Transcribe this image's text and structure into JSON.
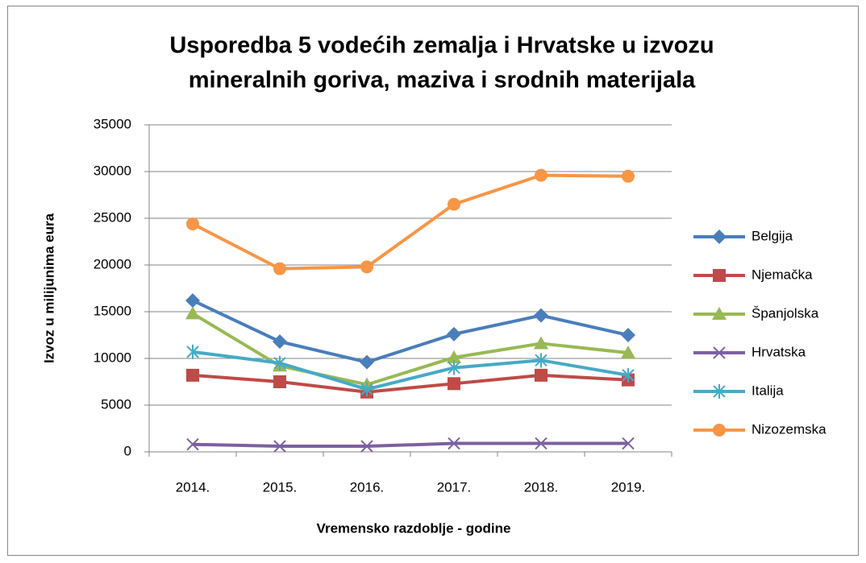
{
  "chart_data": {
    "type": "line",
    "title": [
      "Usporedba 5 vodećih zemalja i Hrvatske u izvozu",
      "mineralnih goriva, maziva i srodnih materijala"
    ],
    "x_label": "Vremensko razdoblje - godine",
    "y_label": "Izvoz u milijunima eura",
    "categories": [
      "2014.",
      "2015.",
      "2016.",
      "2017.",
      "2018.",
      "2019."
    ],
    "ylim": [
      0,
      35000
    ],
    "yticks": [
      0,
      5000,
      10000,
      15000,
      20000,
      25000,
      30000,
      35000
    ],
    "grid": true,
    "legend": "right",
    "series": [
      {
        "name": "Belgija",
        "color": "#4a7ebb",
        "marker": "diamond",
        "values": [
          16200,
          11800,
          9600,
          12600,
          14600,
          12500
        ]
      },
      {
        "name": "Njemačka",
        "color": "#be4b48",
        "marker": "square",
        "values": [
          8200,
          7500,
          6400,
          7300,
          8200,
          7700
        ]
      },
      {
        "name": "Španjolska",
        "color": "#98b954",
        "marker": "triangle",
        "values": [
          14800,
          9200,
          7200,
          10100,
          11600,
          10600
        ]
      },
      {
        "name": "Hrvatska",
        "color": "#7d60a0",
        "marker": "x",
        "values": [
          800,
          600,
          600,
          900,
          900,
          900
        ]
      },
      {
        "name": "Italija",
        "color": "#46aac5",
        "marker": "star",
        "values": [
          10700,
          9500,
          6700,
          9000,
          9800,
          8200
        ]
      },
      {
        "name": "Nizozemska",
        "color": "#f79646",
        "marker": "circle",
        "values": [
          24400,
          19600,
          19800,
          26500,
          29600,
          29500
        ]
      }
    ]
  }
}
